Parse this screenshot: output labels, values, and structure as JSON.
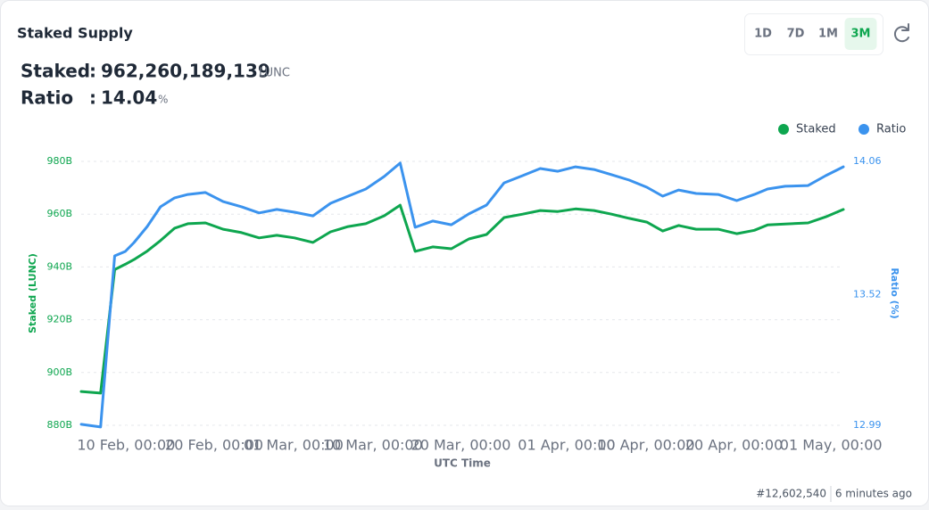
{
  "header": {
    "title": "Staked Supply"
  },
  "ranges": [
    "1D",
    "7D",
    "1M",
    "3M"
  ],
  "active_range": 3,
  "stats": {
    "separator": ":",
    "staked": {
      "label": "Staked",
      "value": "962,260,189,139",
      "unit": "LUNC"
    },
    "ratio": {
      "label": "Ratio",
      "value": "14.04",
      "unit": "%"
    }
  },
  "chart_data": {
    "type": "line",
    "xlabel": "UTC Time",
    "ylabel": "Staked (LUNC)",
    "y2label": "Ratio (%)",
    "legend": "top-right",
    "grid": true,
    "x": [
      35.9,
      38.1,
      39.7,
      40.9,
      41.9,
      43.4,
      44.9,
      46.5,
      48.0,
      50.0,
      52.0,
      54.1,
      56.1,
      58.1,
      60.1,
      62.2,
      64.2,
      66.2,
      68.2,
      70.3,
      72.1,
      73.8,
      75.8,
      77.9,
      79.9,
      81.9,
      83.9,
      86.0,
      88.0,
      90.0,
      92.0,
      94.1,
      96.1,
      98.1,
      100.1,
      101.9,
      103.7,
      105.7,
      108.2,
      110.3,
      112.3,
      113.8,
      115.8,
      118.4,
      120.4,
      122.4
    ],
    "xlim": [
      35.9,
      122.4
    ],
    "xticks": [
      {
        "value": 41,
        "label": "10 Feb, 00:00"
      },
      {
        "value": 51,
        "label": "20 Feb, 00:00"
      },
      {
        "value": 60,
        "label": "01 Mar, 00:00"
      },
      {
        "value": 69,
        "label": "10 Mar, 00:00"
      },
      {
        "value": 79,
        "label": "20 Mar, 00:00"
      },
      {
        "value": 91,
        "label": "01 Apr, 00:00"
      },
      {
        "value": 100,
        "label": "10 Apr, 00:00"
      },
      {
        "value": 110,
        "label": "20 Apr, 00:00"
      },
      {
        "value": 121,
        "label": "01 May, 00:00"
      }
    ],
    "ylim": [
      880,
      980
    ],
    "yticks": [
      {
        "value": 880,
        "label": "880B"
      },
      {
        "value": 900,
        "label": "900B"
      },
      {
        "value": 920,
        "label": "920B"
      },
      {
        "value": 940,
        "label": "940B"
      },
      {
        "value": 960,
        "label": "960B"
      },
      {
        "value": 980,
        "label": "980B"
      }
    ],
    "y2lim": [
      12.99,
      14.06
    ],
    "y2ticks": [
      12.99,
      13.52,
      14.06
    ],
    "series": [
      {
        "name": "Staked",
        "color": "#0ea64f",
        "axis": "y",
        "values": [
          892.8,
          892.2,
          939,
          941,
          942.8,
          946,
          950,
          954.7,
          956.4,
          956.7,
          954.3,
          953,
          951,
          952,
          951,
          949.3,
          953.3,
          955.3,
          956.4,
          959.4,
          963.4,
          945.9,
          947.6,
          946.9,
          950.6,
          952.3,
          958.7,
          960,
          961.4,
          961,
          962,
          961.4,
          960,
          958.4,
          957,
          953.6,
          955.7,
          954.3,
          954.3,
          952.6,
          953.9,
          955.9,
          956.3,
          956.7,
          959,
          961.8
        ]
      },
      {
        "name": "Ratio",
        "color": "#3b93ee",
        "axis": "y2",
        "values": [
          12.994,
          12.983,
          13.677,
          13.695,
          13.731,
          13.796,
          13.876,
          13.912,
          13.926,
          13.934,
          13.897,
          13.876,
          13.851,
          13.865,
          13.854,
          13.839,
          13.89,
          13.919,
          13.948,
          13.999,
          14.053,
          13.793,
          13.818,
          13.803,
          13.847,
          13.883,
          13.973,
          14.002,
          14.031,
          14.02,
          14.038,
          14.027,
          14.006,
          13.984,
          13.955,
          13.919,
          13.944,
          13.93,
          13.926,
          13.901,
          13.926,
          13.948,
          13.959,
          13.962,
          14.002,
          14.038
        ]
      }
    ]
  },
  "footer": {
    "block": "#12,602,540",
    "updated": "6 minutes ago"
  }
}
